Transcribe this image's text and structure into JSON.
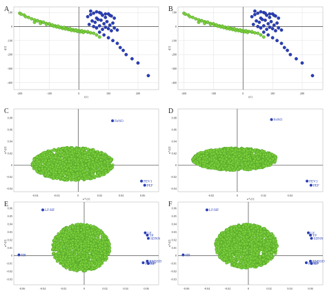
{
  "chart_data": [
    {
      "type": "scatter",
      "panel": "A",
      "xticks": [
        "-200",
        "-100",
        "0",
        "100",
        "200"
      ],
      "yticks": [
        "100",
        "0",
        "-100",
        "-200",
        "-300",
        "-400"
      ],
      "xlabel": "t[1]",
      "ylabel": "t[2]",
      "xlim": [
        -220,
        270
      ],
      "ylim": [
        -450,
        140
      ],
      "grid": true,
      "series": [
        {
          "color": "#7ccf3c",
          "x": [
            -200,
            -195,
            -185,
            -180,
            -170,
            -160,
            -150,
            -140,
            -130,
            -120,
            -110,
            -100,
            -90,
            -80,
            -70,
            -60,
            -50,
            -40,
            -30,
            -20,
            -10,
            0,
            10,
            20,
            30,
            40,
            -150,
            -130,
            -110,
            -95,
            -85,
            -75,
            -65,
            -55,
            -45,
            -35,
            -25,
            -15,
            -5,
            5,
            15,
            -140,
            -120,
            -100,
            -90,
            -70,
            -50,
            -30,
            -10,
            10,
            30,
            50,
            60,
            70
          ],
          "y": [
            95,
            88,
            82,
            70,
            65,
            55,
            48,
            42,
            35,
            30,
            22,
            18,
            10,
            5,
            0,
            -5,
            -10,
            -12,
            -18,
            -22,
            -25,
            -28,
            -32,
            -35,
            -40,
            -45,
            30,
            22,
            15,
            8,
            2,
            -3,
            -8,
            -14,
            -18,
            -22,
            -28,
            -30,
            -35,
            -38,
            -42,
            40,
            32,
            20,
            12,
            3,
            -6,
            -15,
            -24,
            -30,
            -36,
            -48,
            -60,
            -75
          ]
        },
        {
          "color": "#2a3fb5",
          "x": [
            30,
            40,
            50,
            60,
            70,
            80,
            90,
            100,
            110,
            120,
            45,
            55,
            65,
            75,
            85,
            95,
            105,
            115,
            35,
            50,
            60,
            70,
            80,
            90,
            100,
            110,
            120,
            130,
            40,
            60,
            75,
            90,
            105,
            70,
            85,
            100,
            115,
            130,
            140,
            150,
            160,
            180,
            200,
            235
          ],
          "y": [
            70,
            85,
            95,
            60,
            100,
            80,
            65,
            90,
            75,
            60,
            40,
            30,
            50,
            45,
            20,
            35,
            10,
            25,
            15,
            0,
            -10,
            5,
            -20,
            -5,
            -15,
            -30,
            -10,
            -25,
            110,
            105,
            95,
            90,
            80,
            -40,
            -60,
            -80,
            -100,
            -120,
            -150,
            -170,
            -200,
            -230,
            -260,
            -350
          ]
        }
      ]
    },
    {
      "type": "scatter",
      "panel": "B",
      "xticks": [
        "-200",
        "-100",
        "0",
        "100",
        "200"
      ],
      "yticks": [
        "100",
        "0",
        "-100",
        "-200",
        "-300",
        "-400"
      ],
      "xlabel": "t[1]",
      "ylabel": "t[2]",
      "xlim": [
        -220,
        270
      ],
      "ylim": [
        -450,
        140
      ],
      "grid": true,
      "series": [
        {
          "color": "#7ccf3c",
          "x": [
            -200,
            -195,
            -185,
            -180,
            -170,
            -160,
            -150,
            -140,
            -130,
            -120,
            -110,
            -100,
            -90,
            -80,
            -70,
            -60,
            -50,
            -40,
            -30,
            -20,
            -10,
            0,
            10,
            20,
            30,
            40,
            -150,
            -130,
            -110,
            -95,
            -85,
            -75,
            -65,
            -55,
            -45,
            -35,
            -25,
            -15,
            -5,
            5,
            15,
            -140,
            -120,
            -100,
            -90,
            -70,
            -50,
            -30,
            -10,
            10,
            30,
            50,
            60,
            70
          ],
          "y": [
            95,
            88,
            82,
            70,
            65,
            55,
            48,
            42,
            35,
            30,
            22,
            18,
            10,
            5,
            0,
            -5,
            -10,
            -12,
            -18,
            -22,
            -25,
            -28,
            -32,
            -35,
            -40,
            -45,
            30,
            22,
            15,
            8,
            2,
            -3,
            -8,
            -14,
            -18,
            -22,
            -28,
            -30,
            -35,
            -38,
            -42,
            40,
            32,
            20,
            12,
            3,
            -6,
            -15,
            -24,
            -30,
            -36,
            -48,
            -60,
            -75
          ]
        },
        {
          "color": "#2a3fb5",
          "x": [
            30,
            40,
            50,
            60,
            70,
            80,
            90,
            100,
            110,
            120,
            45,
            55,
            65,
            75,
            85,
            95,
            105,
            115,
            35,
            50,
            60,
            70,
            80,
            90,
            100,
            110,
            120,
            130,
            40,
            60,
            75,
            90,
            105,
            70,
            85,
            100,
            115,
            130,
            140,
            150,
            160,
            180,
            200,
            235
          ],
          "y": [
            70,
            85,
            95,
            60,
            100,
            80,
            65,
            90,
            75,
            60,
            40,
            30,
            50,
            45,
            20,
            35,
            10,
            25,
            15,
            0,
            -10,
            5,
            -20,
            -5,
            -15,
            -30,
            -10,
            -25,
            110,
            105,
            95,
            90,
            80,
            -40,
            -60,
            -80,
            -100,
            -120,
            -150,
            -170,
            -200,
            -230,
            -260,
            -350
          ]
        }
      ]
    },
    {
      "type": "scatter",
      "panel": "C",
      "xticks": [
        "-0.04",
        "-0.02",
        "0",
        "0.02",
        "0.04",
        "0.06"
      ],
      "yticks": [
        "0.08",
        "0.06",
        "0.04",
        "0.02",
        "0",
        "-0.02",
        "-0.04"
      ],
      "xlabel": "w*c[1]",
      "ylabel": "w*c[2]",
      "xlim": [
        -0.06,
        0.075
      ],
      "ylim": [
        -0.045,
        0.095
      ],
      "cloud": {
        "cx": -0.005,
        "cy": 0.002,
        "rx": 0.038,
        "ry": 0.028
      },
      "labels": [
        {
          "name": "FeNO",
          "x": 0.032,
          "y": 0.075
        },
        {
          "name": "FEV1",
          "x": 0.059,
          "y": -0.027
        },
        {
          "name": "PEF",
          "x": 0.062,
          "y": -0.034
        }
      ]
    },
    {
      "type": "scatter",
      "panel": "D",
      "xticks": [
        "-0.02",
        "0",
        "0.02",
        "0.04"
      ],
      "yticks": [
        "0.08",
        "0.06",
        "0.04",
        "0.02",
        "0",
        "-0.02",
        "-0.04"
      ],
      "xlabel": "w*c[1]",
      "ylabel": "w*c[2]",
      "xlim": [
        -0.045,
        0.065
      ],
      "ylim": [
        -0.045,
        0.095
      ],
      "cloud": {
        "cx": -0.002,
        "cy": 0.01,
        "rx": 0.032,
        "ry": 0.019
      },
      "labels": [
        {
          "name": "FeNO",
          "x": 0.026,
          "y": 0.077
        },
        {
          "name": "FEV1",
          "x": 0.053,
          "y": -0.027
        },
        {
          "name": "PEF",
          "x": 0.056,
          "y": -0.034
        }
      ]
    },
    {
      "type": "scatter",
      "panel": "E",
      "xticks": [
        "-0.06",
        "-0.04",
        "-0.02",
        "0",
        "0.02",
        "0.04",
        "0.06"
      ],
      "yticks": [
        "0.06",
        "0.05",
        "0.04",
        "0.03",
        "0.02",
        "0.01",
        "0",
        "-0.01",
        "-0.02",
        "-0.03"
      ],
      "xlabel": "w*c[1]",
      "ylabel": "w*c[2]",
      "xlim": [
        -0.068,
        0.072
      ],
      "ylim": [
        -0.037,
        0.068
      ],
      "cloud": {
        "cx": -0.003,
        "cy": 0.01,
        "rx": 0.028,
        "ry": 0.03
      },
      "labels": [
        {
          "name": "LF/HF",
          "x": -0.04,
          "y": 0.058
        },
        {
          "name": "LF",
          "x": 0.059,
          "y": 0.029
        },
        {
          "name": "TP",
          "x": 0.061,
          "y": 0.026
        },
        {
          "name": "SDNN",
          "x": 0.062,
          "y": 0.022
        },
        {
          "name": "HR",
          "x": -0.063,
          "y": 0.001
        },
        {
          "name": "pNN50",
          "x": 0.057,
          "y": -0.009
        },
        {
          "name": "RMSSD",
          "x": 0.061,
          "y": -0.007
        },
        {
          "name": "HF",
          "x": 0.062,
          "y": -0.01
        }
      ]
    },
    {
      "type": "scatter",
      "panel": "F",
      "xticks": [
        "-0.06",
        "-0.04",
        "-0.02",
        "0",
        "0.02",
        "0.04",
        "0.06"
      ],
      "yticks": [
        "0.06",
        "0.05",
        "0.04",
        "0.03",
        "0.02",
        "0.01",
        "0",
        "-0.01",
        "-0.02",
        "-0.03"
      ],
      "xlabel": "w*c[1]",
      "ylabel": "w*c[2]",
      "xlim": [
        -0.068,
        0.072
      ],
      "ylim": [
        -0.037,
        0.068
      ],
      "cloud": {
        "cx": -0.002,
        "cy": 0.012,
        "rx": 0.03,
        "ry": 0.028
      },
      "labels": [
        {
          "name": "LF/HF",
          "x": -0.04,
          "y": 0.058
        },
        {
          "name": "LF",
          "x": 0.058,
          "y": 0.029
        },
        {
          "name": "TP",
          "x": 0.06,
          "y": 0.026
        },
        {
          "name": "SDNN",
          "x": 0.061,
          "y": 0.022
        },
        {
          "name": "HR",
          "x": -0.063,
          "y": 0.001
        },
        {
          "name": "pNN50",
          "x": 0.056,
          "y": -0.009
        },
        {
          "name": "RMSSD",
          "x": 0.06,
          "y": -0.007
        },
        {
          "name": "HF",
          "x": 0.061,
          "y": -0.01
        }
      ]
    }
  ],
  "colors": {
    "green": "#7ccf3c",
    "green_edge": "#3f8f1d",
    "blue": "#2a3fb5",
    "label": "#2a3fb5",
    "axis": "#444444",
    "grid": "#d8d8d8"
  }
}
